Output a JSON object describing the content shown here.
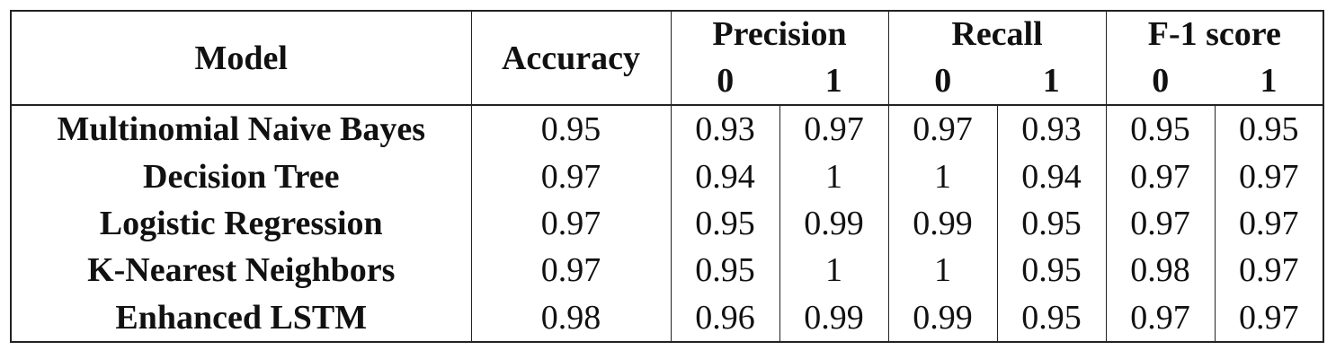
{
  "table": {
    "header": {
      "model": "Model",
      "accuracy": "Accuracy",
      "groups": [
        {
          "label": "Precision",
          "sub": [
            "0",
            "1"
          ]
        },
        {
          "label": "Recall",
          "sub": [
            "0",
            "1"
          ]
        },
        {
          "label": "F-1 score",
          "sub": [
            "0",
            "1"
          ]
        }
      ]
    },
    "rows": [
      {
        "model": "Multinomial Naive Bayes",
        "values": [
          "0.95",
          "0.93",
          "0.97",
          "0.97",
          "0.93",
          "0.95",
          "0.95"
        ]
      },
      {
        "model": "Decision Tree",
        "values": [
          "0.97",
          "0.94",
          "1",
          "1",
          "0.94",
          "0.97",
          "0.97"
        ]
      },
      {
        "model": "Logistic Regression",
        "values": [
          "0.97",
          "0.95",
          "0.99",
          "0.99",
          "0.95",
          "0.97",
          "0.97"
        ]
      },
      {
        "model": "K-Nearest Neighbors",
        "values": [
          "0.97",
          "0.95",
          "1",
          "1",
          "0.95",
          "0.98",
          "0.97"
        ]
      },
      {
        "model": "Enhanced LSTM",
        "values": [
          "0.98",
          "0.96",
          "0.99",
          "0.99",
          "0.95",
          "0.97",
          "0.97"
        ]
      }
    ]
  }
}
